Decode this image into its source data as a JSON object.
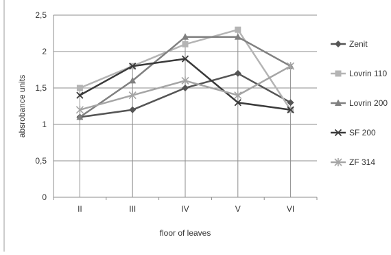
{
  "chart_data": {
    "type": "line",
    "title": "",
    "xlabel": "floor of leaves",
    "ylabel": "absrobance units",
    "categories": [
      "II",
      "III",
      "IV",
      "V",
      "VI"
    ],
    "y_tick_labels": [
      "0",
      "0,5",
      "1",
      "1,5",
      "2",
      "2,5"
    ],
    "ylim": [
      0,
      2.5
    ],
    "grid": "horizontal major gridlines at 1, 1.5, 2, 2.5 plus vertical drop lines",
    "legend_position": "right",
    "series": [
      {
        "name": "Zenit",
        "marker": "diamond",
        "color": "#555555",
        "values": [
          1.1,
          1.2,
          1.5,
          1.7,
          1.3
        ]
      },
      {
        "name": "Lovrin 110",
        "marker": "square",
        "color": "#b4b4b4",
        "values": [
          1.5,
          1.8,
          2.1,
          2.3,
          1.2
        ]
      },
      {
        "name": "Lovrin 200",
        "marker": "triangle",
        "color": "#808080",
        "values": [
          1.1,
          1.6,
          2.2,
          2.2,
          1.8
        ]
      },
      {
        "name": "SF 200",
        "marker": "x",
        "color": "#3a3a3a",
        "values": [
          1.4,
          1.8,
          1.9,
          1.3,
          1.2
        ]
      },
      {
        "name": "ZF 314",
        "marker": "star",
        "color": "#a5a5a5",
        "values": [
          1.2,
          1.4,
          1.6,
          1.4,
          1.8
        ]
      }
    ]
  }
}
